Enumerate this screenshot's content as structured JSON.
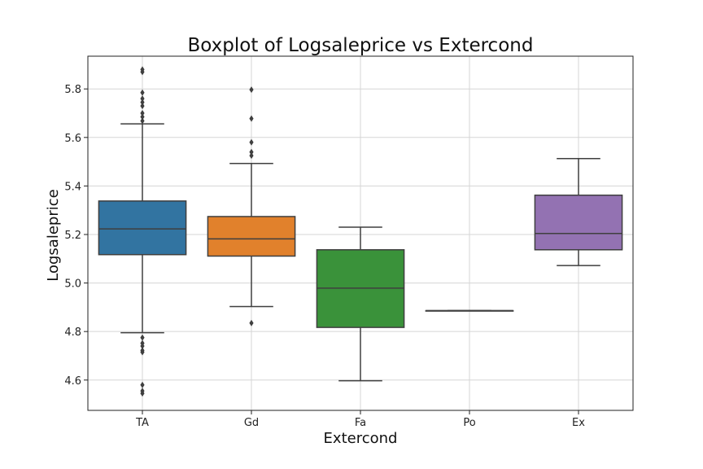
{
  "chart_data": {
    "type": "box",
    "title": "Boxplot of Logsaleprice vs Extercond",
    "xlabel": "Extercond",
    "ylabel": "Logsaleprice",
    "ylim": [
      4.475,
      5.935
    ],
    "yticks": [
      "4.6",
      "4.8",
      "5.0",
      "5.2",
      "5.4",
      "5.6",
      "5.8"
    ],
    "grid": true,
    "categories": [
      "TA",
      "Gd",
      "Fa",
      "Po",
      "Ex"
    ],
    "series": [
      {
        "category": "TA",
        "color": "#3274a1",
        "whisker_low": 4.795,
        "q1": 5.117,
        "median": 5.223,
        "q3": 5.338,
        "whisker_high": 5.656,
        "outliers": [
          5.668,
          5.685,
          5.7,
          5.73,
          5.745,
          5.76,
          5.785,
          5.87,
          5.88,
          4.775,
          4.752,
          4.74,
          4.722,
          4.715,
          4.58,
          4.555,
          4.545
        ]
      },
      {
        "category": "Gd",
        "color": "#e1812c",
        "whisker_low": 4.903,
        "q1": 5.111,
        "median": 5.182,
        "q3": 5.274,
        "whisker_high": 5.493,
        "outliers": [
          5.525,
          5.54,
          5.58,
          5.678,
          5.797,
          4.835
        ]
      },
      {
        "category": "Fa",
        "color": "#3a923a",
        "whisker_low": 4.597,
        "q1": 4.817,
        "median": 4.979,
        "q3": 5.137,
        "whisker_high": 5.23,
        "outliers": []
      },
      {
        "category": "Po",
        "color": "#c03d3e",
        "whisker_low": 4.886,
        "q1": 4.886,
        "median": 4.886,
        "q3": 4.886,
        "whisker_high": 4.886,
        "outliers": []
      },
      {
        "category": "Ex",
        "color": "#9372b2",
        "whisker_low": 5.072,
        "q1": 5.137,
        "median": 5.204,
        "q3": 5.362,
        "whisker_high": 5.513,
        "outliers": []
      }
    ]
  }
}
